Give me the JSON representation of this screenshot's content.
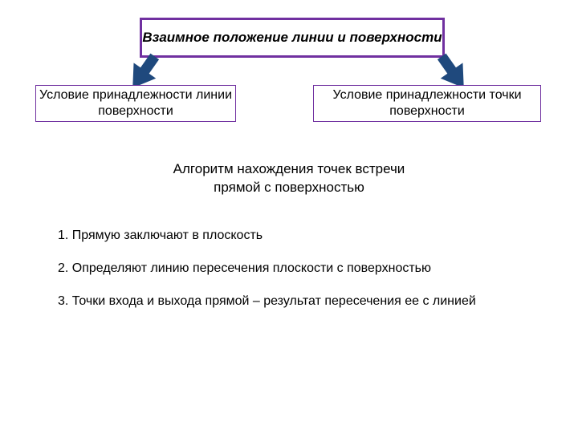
{
  "colors": {
    "top_border": "#7030a0",
    "top_fill": "#ffffff",
    "child_border": "#7030a0",
    "child_fill": "#ffffff",
    "arrow_fill": "#1f497d",
    "text": "#000000",
    "background": "#ffffff"
  },
  "typography": {
    "title_fontsize": 17,
    "child_fontsize": 16,
    "heading_fontsize": 17,
    "step_fontsize": 16
  },
  "top": {
    "title": "Взаимное положение линии и поверхности"
  },
  "children": {
    "left": "Условие принадлежности линии поверхности",
    "right": "Условие принадлежности точки поверхности"
  },
  "algorithm": {
    "heading_line1": "Алгоритм нахождения точек встречи",
    "heading_line2": "прямой с поверхностью",
    "step1": "1. Прямую заключают в плоскость",
    "step2": "2. Определяют линию пересечения плоскости с поверхностью",
    "step3": "3. Точки входа и выхода прямой – результат  пересечения ее с линией"
  },
  "arrows": {
    "width": 48,
    "height": 48,
    "shaft_thickness": 13,
    "head_ratio": 0.55,
    "left_angle_deg": 125,
    "right_angle_deg": 55
  }
}
